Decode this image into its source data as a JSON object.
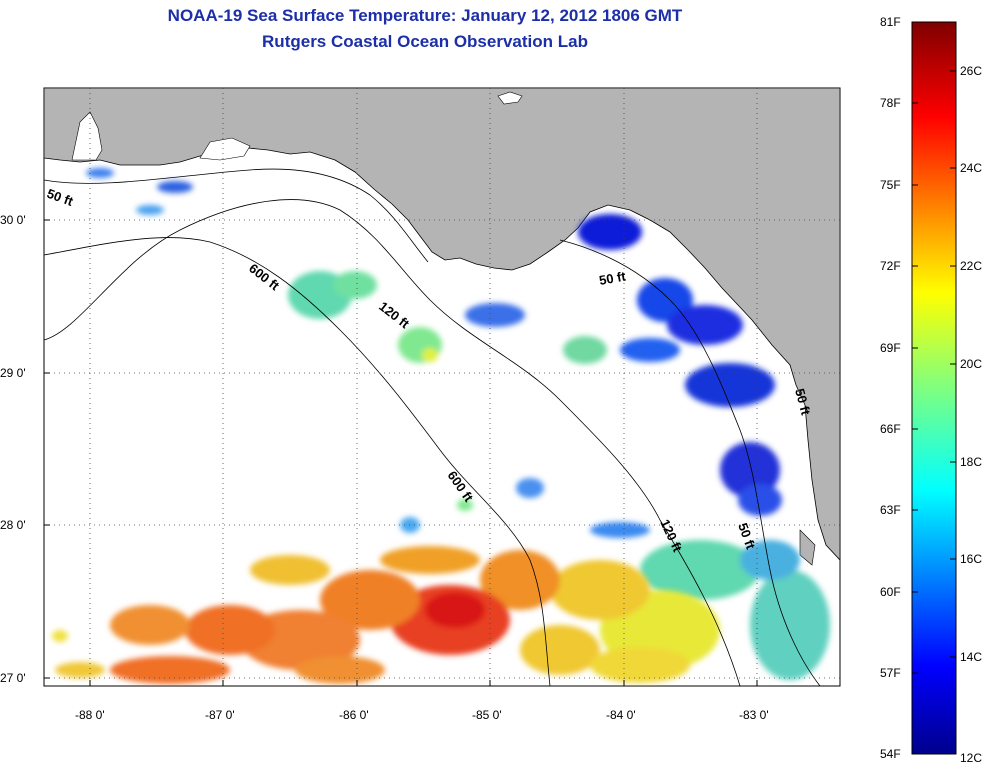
{
  "header": {
    "title": "NOAA-19 Sea Surface Temperature:  January 12, 2012 1806 GMT",
    "subtitle": "Rutgers Coastal Ocean Observation Lab"
  },
  "map": {
    "lon_labels": [
      "-88 0'",
      "-87 0'",
      "-86 0'",
      "-85 0'",
      "-84 0'",
      "-83 0'"
    ],
    "lat_labels": [
      "30 0'",
      "29 0'",
      "28 0'",
      "27 0'"
    ],
    "contour_labels": [
      "50 ft",
      "600 ft",
      "120 ft",
      "50 ft",
      "600 ft",
      "120 ft",
      "50 ft",
      "50 ft"
    ]
  },
  "colorbar": {
    "fahrenheit": [
      "81F",
      "78F",
      "75F",
      "72F",
      "69F",
      "66F",
      "63F",
      "60F",
      "57F",
      "54F"
    ],
    "celsius": [
      "26C",
      "24C",
      "22C",
      "20C",
      "18C",
      "16C",
      "14C",
      "12C"
    ]
  },
  "colors": {
    "land": "#b4b4b4",
    "water_nodata": "#ffffff",
    "title": "#1c2fa8"
  }
}
